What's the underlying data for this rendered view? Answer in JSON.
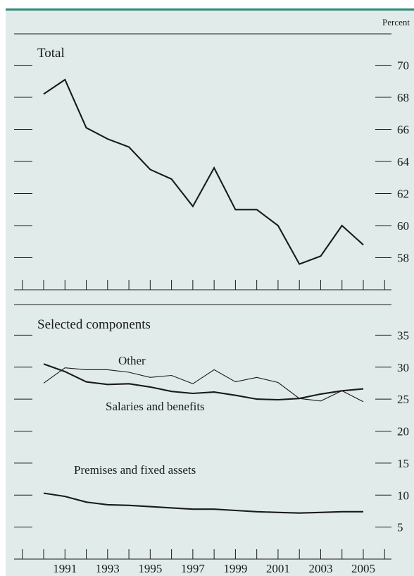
{
  "colors": {
    "panel_bg": "#e1ecea",
    "top_rule": "#2e8a7a",
    "line": "#1a1a1a",
    "axis": "#1a1a1a"
  },
  "unit_label": "Percent",
  "chart_data": [
    {
      "type": "line",
      "title": "Total",
      "x": [
        1990,
        1991,
        1992,
        1993,
        1994,
        1995,
        1996,
        1997,
        1998,
        1999,
        2000,
        2001,
        2002,
        2003,
        2004,
        2005
      ],
      "series": [
        {
          "values": [
            68.2,
            69.1,
            66.1,
            65.4,
            64.9,
            63.5,
            62.9,
            61.2,
            63.6,
            61.0,
            61.0,
            60.0,
            57.6,
            58.1,
            60.0,
            58.8
          ]
        }
      ],
      "ylim": [
        56,
        72
      ],
      "yticks": [
        58,
        60,
        62,
        64,
        66,
        68,
        70
      ],
      "ytick_labels": [
        "58",
        "60",
        "62",
        "64",
        "66",
        "68",
        "70"
      ],
      "grid": false
    },
    {
      "type": "line",
      "title": "Selected components",
      "x": [
        1990,
        1991,
        1992,
        1993,
        1994,
        1995,
        1996,
        1997,
        1998,
        1999,
        2000,
        2001,
        2002,
        2003,
        2004,
        2005
      ],
      "series": [
        {
          "name": "Other",
          "weight": "thin",
          "values": [
            27.5,
            29.9,
            29.6,
            29.6,
            29.2,
            28.4,
            28.7,
            27.4,
            29.6,
            27.7,
            28.4,
            27.6,
            25.1,
            24.7,
            26.3,
            24.6
          ]
        },
        {
          "name": "Salaries and benefits",
          "weight": "thick",
          "values": [
            30.5,
            29.3,
            27.7,
            27.3,
            27.4,
            26.9,
            26.2,
            25.9,
            26.1,
            25.6,
            25.0,
            24.9,
            25.1,
            25.8,
            26.3,
            26.6
          ]
        },
        {
          "name": "Premises and fixed assets",
          "weight": "thick",
          "values": [
            10.3,
            9.8,
            8.9,
            8.5,
            8.4,
            8.2,
            8.0,
            7.8,
            7.8,
            7.6,
            7.4,
            7.3,
            7.2,
            7.3,
            7.4,
            7.4
          ]
        }
      ],
      "ylim": [
        0,
        40
      ],
      "yticks": [
        5,
        10,
        15,
        20,
        25,
        30,
        35
      ],
      "ytick_labels": [
        "5",
        "10",
        "15",
        "20",
        "25",
        "30",
        "35"
      ],
      "xtick_labels": [
        "1991",
        "1993",
        "1995",
        "1997",
        "1999",
        "2001",
        "2003",
        "2005"
      ],
      "grid": false
    }
  ]
}
